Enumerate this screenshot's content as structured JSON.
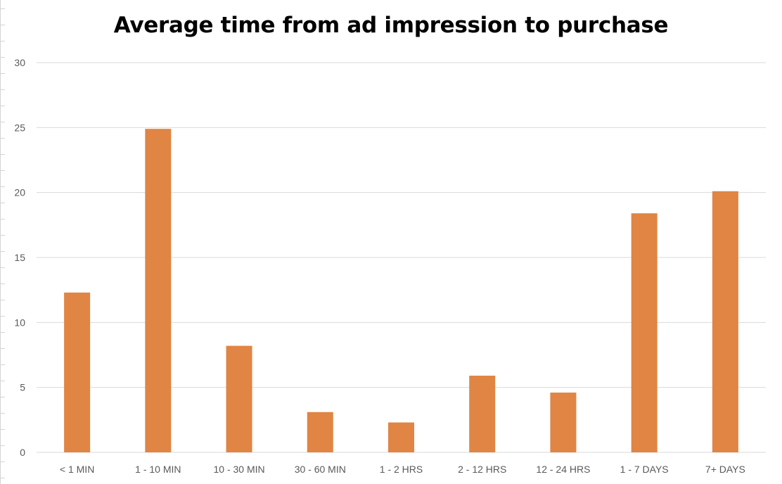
{
  "chart_data": {
    "type": "bar",
    "title": "Average time from ad impression to purchase",
    "xlabel": "",
    "ylabel": "",
    "categories": [
      "< 1 MIN",
      "1 - 10 MIN",
      "10 - 30 MIN",
      "30 - 60 MIN",
      "1 - 2 HRS",
      "2 - 12 HRS",
      "12 - 24 HRS",
      "1 - 7 DAYS",
      "7+ DAYS"
    ],
    "values": [
      12.3,
      24.9,
      8.2,
      3.1,
      2.3,
      5.9,
      4.6,
      18.4,
      20.1
    ],
    "ylim": [
      0,
      30
    ],
    "yticks": [
      0,
      5,
      10,
      15,
      20,
      25,
      30
    ],
    "grid": true,
    "legend": "none",
    "colors": {
      "bar": "#E08543",
      "grid": "#d9d9d9",
      "tick_text": "#595959"
    }
  }
}
